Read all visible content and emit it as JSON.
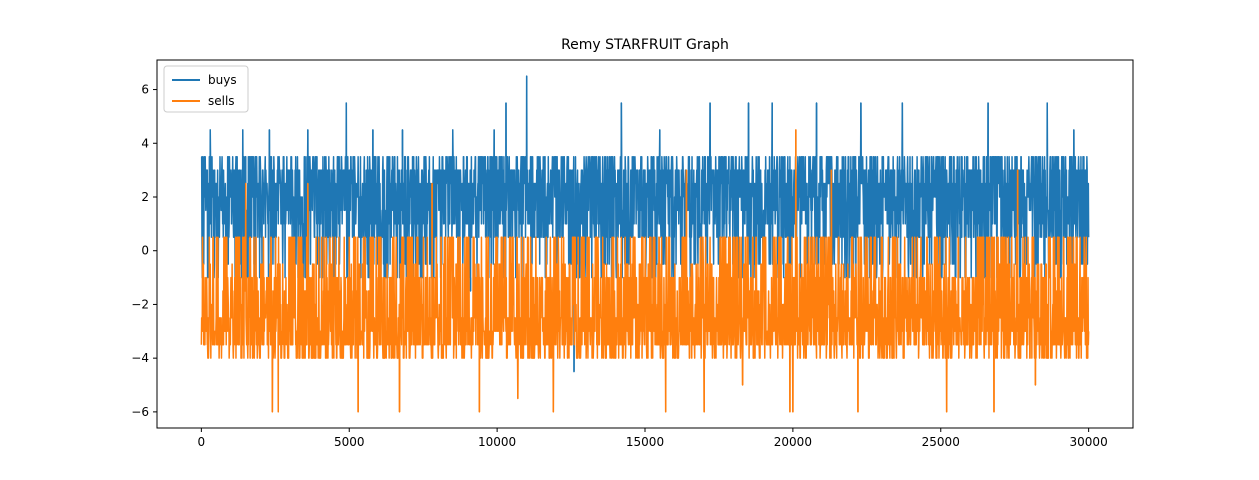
{
  "chart_data": {
    "type": "line",
    "title": "Remy STARFRUIT Graph",
    "xlabel": "",
    "ylabel": "",
    "xlim": [
      -1500,
      31500
    ],
    "ylim": [
      -6.6,
      7.1
    ],
    "x_ticks": [
      0,
      5000,
      10000,
      15000,
      20000,
      25000,
      30000
    ],
    "x_tick_labels": [
      "0",
      "5000",
      "10000",
      "15000",
      "20000",
      "25000",
      "30000"
    ],
    "y_ticks": [
      -6,
      -4,
      -2,
      0,
      2,
      4,
      6
    ],
    "y_tick_labels": [
      "−6",
      "−4",
      "−2",
      "0",
      "2",
      "4",
      "6"
    ],
    "grid": false,
    "legend_position": "upper-left",
    "x_range": [
      0,
      30000
    ],
    "series": [
      {
        "name": "buys",
        "color": "#1f77b4",
        "levels": [
          3.5,
          3.5,
          3.5,
          3,
          3,
          2.5,
          2.5,
          2,
          1.5,
          1,
          0.5,
          -0.5,
          -1,
          2.5,
          2,
          1.5,
          1,
          0.5,
          3
        ],
        "spikes": [
          {
            "x": 300,
            "y": 4.5
          },
          {
            "x": 1400,
            "y": 4.5
          },
          {
            "x": 2300,
            "y": 4.5
          },
          {
            "x": 3600,
            "y": 4.5
          },
          {
            "x": 4900,
            "y": 5.5
          },
          {
            "x": 5800,
            "y": 4.5
          },
          {
            "x": 6800,
            "y": 4.5
          },
          {
            "x": 8500,
            "y": 4.5
          },
          {
            "x": 9900,
            "y": 4.5
          },
          {
            "x": 10300,
            "y": 5.5
          },
          {
            "x": 11000,
            "y": 6.5
          },
          {
            "x": 12600,
            "y": -4.5
          },
          {
            "x": 14200,
            "y": 5.5
          },
          {
            "x": 15500,
            "y": 4.5
          },
          {
            "x": 17200,
            "y": 5.5
          },
          {
            "x": 18500,
            "y": 5.5
          },
          {
            "x": 19300,
            "y": 5.5
          },
          {
            "x": 20800,
            "y": 5.5
          },
          {
            "x": 22300,
            "y": 5.5
          },
          {
            "x": 23700,
            "y": 5.5
          },
          {
            "x": 26600,
            "y": 5.5
          },
          {
            "x": 28600,
            "y": 5.5
          },
          {
            "x": 29500,
            "y": 4.5
          },
          {
            "x": 9100,
            "y": -1.5
          }
        ]
      },
      {
        "name": "sells",
        "color": "#ff7f0e",
        "levels": [
          -3.5,
          -3.5,
          -3.5,
          -3,
          -3,
          -2.5,
          -2.5,
          -2,
          -1.5,
          -1,
          -0.5,
          0.5,
          0.5,
          -3.5,
          -3,
          -2.5,
          -1,
          -4,
          -4
        ],
        "spikes": [
          {
            "x": 2400,
            "y": -6
          },
          {
            "x": 2600,
            "y": -6
          },
          {
            "x": 5300,
            "y": -6
          },
          {
            "x": 6700,
            "y": -6
          },
          {
            "x": 9400,
            "y": -6
          },
          {
            "x": 11900,
            "y": -6
          },
          {
            "x": 15700,
            "y": -6
          },
          {
            "x": 17000,
            "y": -6
          },
          {
            "x": 19900,
            "y": -6
          },
          {
            "x": 20000,
            "y": -6
          },
          {
            "x": 22200,
            "y": -6
          },
          {
            "x": 25200,
            "y": -6
          },
          {
            "x": 26800,
            "y": -6
          },
          {
            "x": 20100,
            "y": 4.5
          },
          {
            "x": 1500,
            "y": 2.5
          },
          {
            "x": 3600,
            "y": 2.5
          },
          {
            "x": 7800,
            "y": 2.5
          },
          {
            "x": 16400,
            "y": 3
          },
          {
            "x": 21300,
            "y": 3
          },
          {
            "x": 27600,
            "y": 3
          },
          {
            "x": 10700,
            "y": -5.5
          },
          {
            "x": 18300,
            "y": -5
          },
          {
            "x": 28200,
            "y": -5
          }
        ]
      }
    ]
  }
}
